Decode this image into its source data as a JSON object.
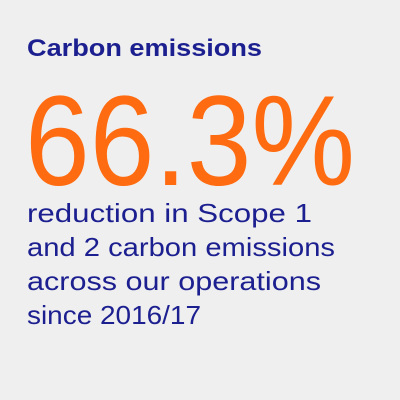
{
  "card": {
    "title": "Carbon emissions",
    "stat": "66.3%",
    "description_lines": [
      "reduction in Scope 1",
      "and 2 carbon emissions",
      "across our operations",
      "since 2016/17"
    ]
  }
}
